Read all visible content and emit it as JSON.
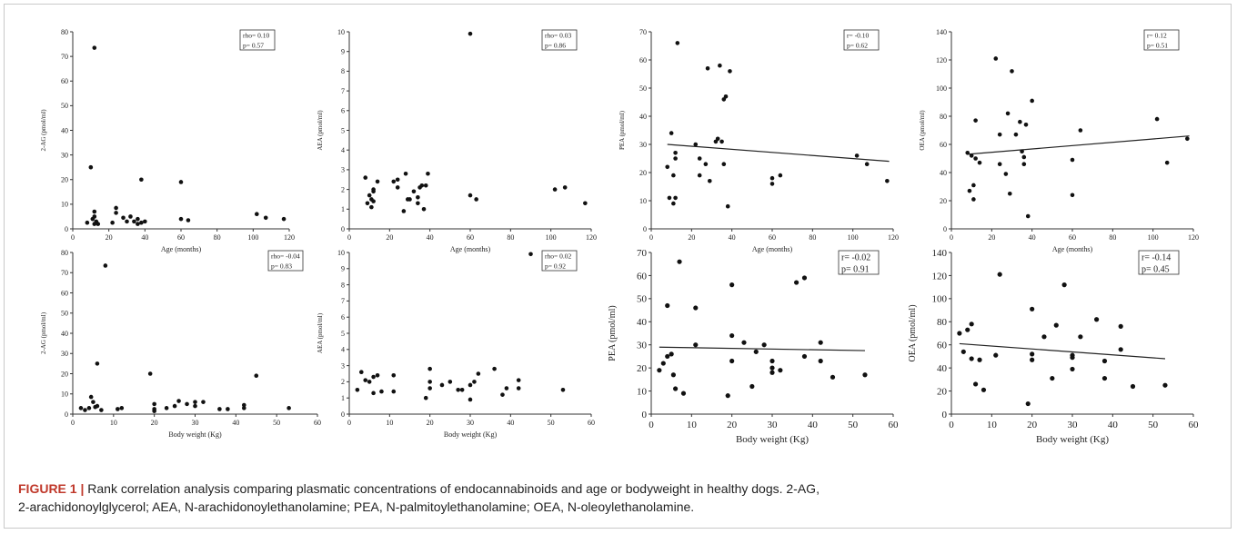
{
  "caption": {
    "label": "FIGURE 1 |",
    "line1": "Rank correlation analysis comparing plasmatic concentrations of endocannabinoids and age or bodyweight in healthy dogs. 2-AG,",
    "line2": "2-arachidonoylglycerol; AEA, N-arachidonoylethanolamine; PEA, N-palmitoylethanolamine; OEA, N-oleoylethanolamine."
  },
  "chart_data": [
    {
      "type": "scatter",
      "xlabel": "Age (months)",
      "ylabel": "2-AG (pmol/ml)",
      "xlim": [
        0,
        120
      ],
      "ylim": [
        0,
        80
      ],
      "xticks": [
        0,
        20,
        40,
        60,
        80,
        100,
        120
      ],
      "yticks": [
        0,
        10,
        20,
        30,
        40,
        50,
        60,
        70,
        80
      ],
      "stats": [
        "rho= 0.10",
        "p= 0.57"
      ],
      "trendline": null,
      "points": [
        [
          8,
          2.5
        ],
        [
          10,
          25
        ],
        [
          11,
          4
        ],
        [
          12,
          2
        ],
        [
          12,
          5
        ],
        [
          12,
          7
        ],
        [
          12,
          73.5
        ],
        [
          13,
          3
        ],
        [
          14,
          2
        ],
        [
          22,
          2.5
        ],
        [
          24,
          6.5
        ],
        [
          24,
          8.5
        ],
        [
          28,
          4.5
        ],
        [
          30,
          3
        ],
        [
          32,
          5
        ],
        [
          34,
          3
        ],
        [
          36,
          2
        ],
        [
          36,
          4
        ],
        [
          38,
          20
        ],
        [
          38,
          2.5
        ],
        [
          40,
          3
        ],
        [
          60,
          19
        ],
        [
          60,
          4
        ],
        [
          64,
          3.5
        ],
        [
          102,
          6
        ],
        [
          107,
          4.5
        ],
        [
          117,
          4
        ]
      ]
    },
    {
      "type": "scatter",
      "xlabel": "Age (months)",
      "ylabel": "AEA (pmol/ml)",
      "xlim": [
        0,
        120
      ],
      "ylim": [
        0,
        10
      ],
      "xticks": [
        0,
        20,
        40,
        60,
        80,
        100,
        120
      ],
      "yticks": [
        0,
        1,
        2,
        3,
        4,
        5,
        6,
        7,
        8,
        9,
        10
      ],
      "stats": [
        "rho= 0.03",
        "p= 0.86"
      ],
      "trendline": null,
      "points": [
        [
          8,
          2.6
        ],
        [
          9,
          1.3
        ],
        [
          10,
          1.7
        ],
        [
          11,
          1.5
        ],
        [
          11,
          1.1
        ],
        [
          12,
          1.4
        ],
        [
          12,
          2.0
        ],
        [
          12,
          1.9
        ],
        [
          14,
          2.4
        ],
        [
          22,
          2.4
        ],
        [
          24,
          2.1
        ],
        [
          24,
          2.5
        ],
        [
          27,
          0.9
        ],
        [
          28,
          2.8
        ],
        [
          29,
          1.5
        ],
        [
          30,
          1.5
        ],
        [
          32,
          1.9
        ],
        [
          34,
          1.6
        ],
        [
          34,
          1.3
        ],
        [
          35,
          2.1
        ],
        [
          36,
          2.2
        ],
        [
          37,
          1.0
        ],
        [
          38,
          2.2
        ],
        [
          39,
          2.8
        ],
        [
          60,
          9.9
        ],
        [
          60,
          1.7
        ],
        [
          63,
          1.5
        ],
        [
          102,
          2.0
        ],
        [
          107,
          2.1
        ],
        [
          117,
          1.3
        ]
      ]
    },
    {
      "type": "scatter",
      "xlabel": "Age (months)",
      "ylabel": "PEA (pmol/ml)",
      "xlim": [
        0,
        120
      ],
      "ylim": [
        0,
        70
      ],
      "xticks": [
        0,
        20,
        40,
        60,
        80,
        100,
        120
      ],
      "yticks": [
        0,
        10,
        20,
        30,
        40,
        50,
        60,
        70
      ],
      "stats": [
        "r= -0.10",
        "p= 0.62"
      ],
      "trendline": [
        [
          8,
          30
        ],
        [
          118,
          24
        ]
      ],
      "points": [
        [
          8,
          22
        ],
        [
          9,
          11
        ],
        [
          10,
          34
        ],
        [
          11,
          19
        ],
        [
          11,
          9
        ],
        [
          12,
          27
        ],
        [
          12,
          25
        ],
        [
          12,
          11
        ],
        [
          13,
          66
        ],
        [
          22,
          30
        ],
        [
          24,
          25
        ],
        [
          24,
          19
        ],
        [
          27,
          23
        ],
        [
          28,
          57
        ],
        [
          29,
          17
        ],
        [
          32,
          31
        ],
        [
          33,
          32
        ],
        [
          34,
          58
        ],
        [
          35,
          31
        ],
        [
          36,
          23
        ],
        [
          36,
          46
        ],
        [
          37,
          47
        ],
        [
          38,
          8
        ],
        [
          39,
          56
        ],
        [
          60,
          18
        ],
        [
          60,
          16
        ],
        [
          64,
          19
        ],
        [
          102,
          26
        ],
        [
          107,
          23
        ],
        [
          117,
          17
        ]
      ]
    },
    {
      "type": "scatter",
      "xlabel": "Age (months)",
      "ylabel": "OEA (pmol/ml)",
      "xlim": [
        0,
        120
      ],
      "ylim": [
        0,
        140
      ],
      "xticks": [
        0,
        20,
        40,
        60,
        80,
        100,
        120
      ],
      "yticks": [
        0,
        20,
        40,
        60,
        80,
        100,
        120,
        140
      ],
      "stats": [
        "r= 0.12",
        "p= 0.51"
      ],
      "trendline": [
        [
          8,
          53
        ],
        [
          118,
          66
        ]
      ],
      "points": [
        [
          8,
          54
        ],
        [
          9,
          27
        ],
        [
          10,
          52
        ],
        [
          11,
          31
        ],
        [
          11,
          21
        ],
        [
          12,
          77
        ],
        [
          12,
          50
        ],
        [
          14,
          47
        ],
        [
          22,
          121
        ],
        [
          24,
          67
        ],
        [
          24,
          46
        ],
        [
          27,
          39
        ],
        [
          28,
          82
        ],
        [
          29,
          25
        ],
        [
          30,
          112
        ],
        [
          32,
          67
        ],
        [
          34,
          76
        ],
        [
          35,
          55
        ],
        [
          36,
          51
        ],
        [
          36,
          46
        ],
        [
          37,
          74
        ],
        [
          38,
          9
        ],
        [
          40,
          91
        ],
        [
          60,
          49
        ],
        [
          60,
          24
        ],
        [
          64,
          70
        ],
        [
          102,
          78
        ],
        [
          107,
          47
        ],
        [
          117,
          64
        ]
      ]
    },
    {
      "type": "scatter",
      "xlabel": "Body weight (Kg)",
      "ylabel": "2-AG (pmol/ml)",
      "xlim": [
        0,
        60
      ],
      "ylim": [
        0,
        80
      ],
      "xticks": [
        0,
        10,
        20,
        30,
        40,
        50,
        60
      ],
      "yticks": [
        0,
        10,
        20,
        30,
        40,
        50,
        60,
        70,
        80
      ],
      "stats": [
        "rho= -0.04",
        "p= 0.83"
      ],
      "trendline": null,
      "points": [
        [
          2,
          3
        ],
        [
          3,
          2
        ],
        [
          4,
          3
        ],
        [
          4.5,
          8.5
        ],
        [
          5,
          6
        ],
        [
          5.5,
          3.5
        ],
        [
          6,
          25
        ],
        [
          6,
          4
        ],
        [
          7,
          2
        ],
        [
          8,
          73.5
        ],
        [
          11,
          2.5
        ],
        [
          12,
          3
        ],
        [
          19,
          20
        ],
        [
          20,
          5
        ],
        [
          20,
          2.5
        ],
        [
          20,
          1.5
        ],
        [
          23,
          3
        ],
        [
          25,
          4
        ],
        [
          26,
          6.5
        ],
        [
          28,
          5
        ],
        [
          30,
          6
        ],
        [
          30,
          4
        ],
        [
          32,
          6
        ],
        [
          36,
          2.5
        ],
        [
          38,
          2.5
        ],
        [
          42,
          4.5
        ],
        [
          42,
          3
        ],
        [
          45,
          19
        ],
        [
          53,
          3
        ]
      ]
    },
    {
      "type": "scatter",
      "xlabel": "Body weight (Kg)",
      "ylabel": "AEA (pmol/ml)",
      "xlim": [
        0,
        60
      ],
      "ylim": [
        0,
        10
      ],
      "xticks": [
        0,
        10,
        20,
        30,
        40,
        50,
        60
      ],
      "yticks": [
        0,
        1,
        2,
        3,
        4,
        5,
        6,
        7,
        8,
        9,
        10
      ],
      "stats": [
        "rho= 0.02",
        "p= 0.92"
      ],
      "trendline": null,
      "points": [
        [
          2,
          1.5
        ],
        [
          3,
          2.6
        ],
        [
          4,
          2.1
        ],
        [
          5,
          2.0
        ],
        [
          6,
          1.3
        ],
        [
          6,
          2.3
        ],
        [
          7,
          2.4
        ],
        [
          8,
          1.4
        ],
        [
          11,
          1.4
        ],
        [
          11,
          2.4
        ],
        [
          19,
          1.0
        ],
        [
          20,
          2.8
        ],
        [
          20,
          2.0
        ],
        [
          20,
          1.6
        ],
        [
          23,
          1.8
        ],
        [
          25,
          2.0
        ],
        [
          27,
          1.5
        ],
        [
          28,
          1.5
        ],
        [
          30,
          1.8
        ],
        [
          30,
          0.9
        ],
        [
          31,
          2.0
        ],
        [
          32,
          2.5
        ],
        [
          36,
          2.8
        ],
        [
          38,
          1.2
        ],
        [
          39,
          1.6
        ],
        [
          42,
          1.6
        ],
        [
          42,
          2.1
        ],
        [
          45,
          9.9
        ],
        [
          53,
          1.5
        ]
      ]
    },
    {
      "type": "scatter",
      "xlabel": "Body weight (Kg)",
      "ylabel": "PEA (pmol/ml)",
      "xlim": [
        0,
        60
      ],
      "ylim": [
        0,
        70
      ],
      "xticks": [
        0,
        10,
        20,
        30,
        40,
        50,
        60
      ],
      "yticks": [
        0,
        10,
        20,
        30,
        40,
        50,
        60,
        70
      ],
      "stats": [
        "r= -0.02",
        "p= 0.91"
      ],
      "trendline": [
        [
          2,
          29
        ],
        [
          53,
          27.5
        ]
      ],
      "points": [
        [
          2,
          19
        ],
        [
          3,
          22
        ],
        [
          4,
          47
        ],
        [
          4,
          25
        ],
        [
          5,
          26
        ],
        [
          5.5,
          17
        ],
        [
          6,
          11
        ],
        [
          7,
          66
        ],
        [
          8,
          9
        ],
        [
          11,
          46
        ],
        [
          11,
          30
        ],
        [
          19,
          8
        ],
        [
          20,
          56
        ],
        [
          20,
          34
        ],
        [
          20,
          23
        ],
        [
          23,
          31
        ],
        [
          25,
          12
        ],
        [
          26,
          27
        ],
        [
          28,
          30
        ],
        [
          30,
          18
        ],
        [
          30,
          20
        ],
        [
          30,
          23
        ],
        [
          32,
          19
        ],
        [
          36,
          57
        ],
        [
          38,
          59
        ],
        [
          38,
          25
        ],
        [
          42,
          31
        ],
        [
          42,
          23
        ],
        [
          45,
          16
        ],
        [
          53,
          17
        ]
      ]
    },
    {
      "type": "scatter",
      "xlabel": "Body weight (Kg)",
      "ylabel": "OEA (pmol/ml)",
      "xlim": [
        0,
        60
      ],
      "ylim": [
        0,
        140
      ],
      "xticks": [
        0,
        10,
        20,
        30,
        40,
        50,
        60
      ],
      "yticks": [
        0,
        20,
        40,
        60,
        80,
        100,
        120,
        140
      ],
      "stats": [
        "r= -0.14",
        "p= 0.45"
      ],
      "trendline": [
        [
          2,
          61
        ],
        [
          53,
          48
        ]
      ],
      "points": [
        [
          2,
          70
        ],
        [
          3,
          54
        ],
        [
          4,
          73
        ],
        [
          5,
          78
        ],
        [
          5,
          48
        ],
        [
          6,
          26
        ],
        [
          7,
          47
        ],
        [
          8,
          21
        ],
        [
          11,
          51
        ],
        [
          12,
          121
        ],
        [
          19,
          9
        ],
        [
          20,
          91
        ],
        [
          20,
          52
        ],
        [
          20,
          47
        ],
        [
          23,
          67
        ],
        [
          25,
          31
        ],
        [
          26,
          77
        ],
        [
          28,
          112
        ],
        [
          30,
          51
        ],
        [
          30,
          49
        ],
        [
          30,
          39
        ],
        [
          32,
          67
        ],
        [
          36,
          82
        ],
        [
          38,
          31
        ],
        [
          38,
          46
        ],
        [
          42,
          76
        ],
        [
          42,
          56
        ],
        [
          45,
          24
        ],
        [
          53,
          25
        ]
      ]
    }
  ]
}
